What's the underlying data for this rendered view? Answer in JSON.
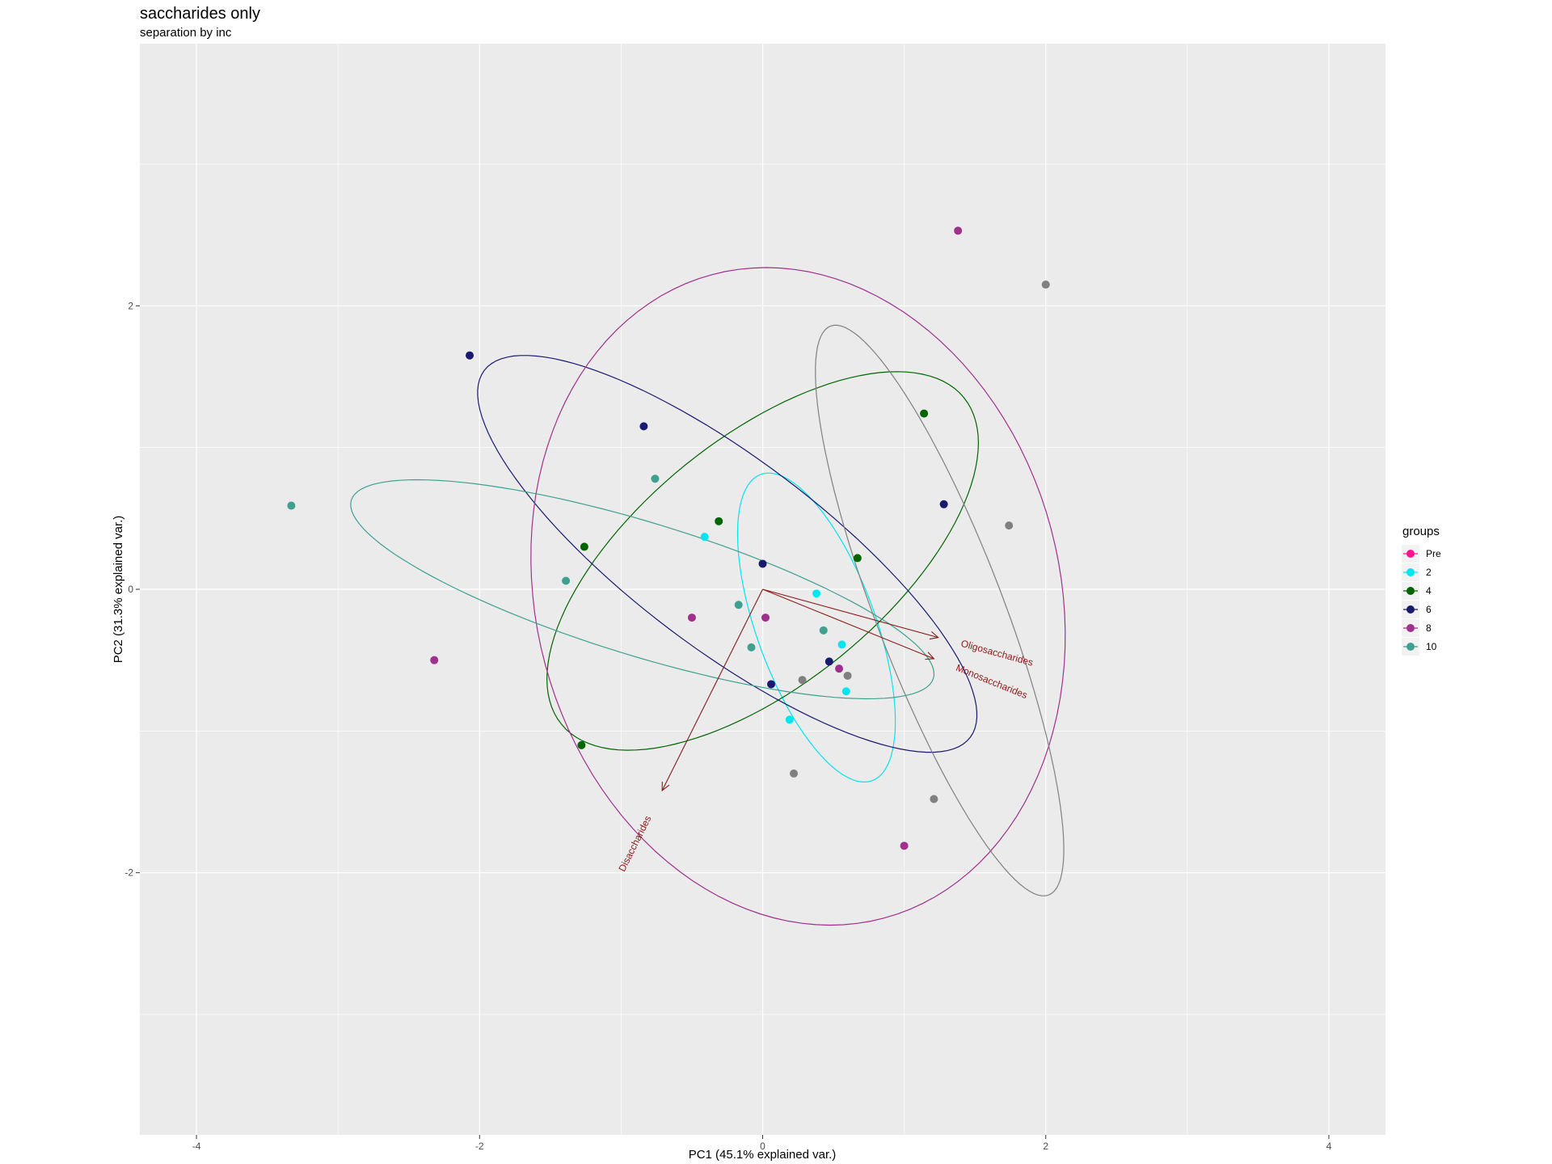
{
  "chart_data": {
    "type": "scatter",
    "title": "saccharides only",
    "subtitle": "separation by inc",
    "xlabel": "PC1 (45.1% explained var.)",
    "ylabel": "PC2 (31.3% explained var.)",
    "xlim": [
      -4.4,
      4.4
    ],
    "ylim": [
      -3.85,
      3.85
    ],
    "xticks": [
      -4,
      -2,
      0,
      2,
      4
    ],
    "yticks": [
      -2,
      0,
      2
    ],
    "grid": true,
    "legend": {
      "title": "groups",
      "position": "right"
    },
    "series": [
      {
        "name": "Pre",
        "color": "#ff1493",
        "points": []
      },
      {
        "name": "2",
        "color": "#00e5ee",
        "points": [
          [
            -0.41,
            0.37
          ],
          [
            0.38,
            -0.03
          ],
          [
            0.56,
            -0.39
          ],
          [
            0.59,
            -0.72
          ],
          [
            0.19,
            -0.92
          ]
        ]
      },
      {
        "name": "4",
        "color": "#006400",
        "points": [
          [
            -1.26,
            0.3
          ],
          [
            -0.31,
            0.48
          ],
          [
            0.67,
            0.22
          ],
          [
            1.14,
            1.24
          ],
          [
            -1.28,
            -1.1
          ]
        ]
      },
      {
        "name": "6",
        "color": "#191970",
        "points": [
          [
            -2.07,
            1.65
          ],
          [
            -0.84,
            1.15
          ],
          [
            0.0,
            0.18
          ],
          [
            1.28,
            0.6
          ],
          [
            0.47,
            -0.51
          ],
          [
            0.06,
            -0.67
          ]
        ]
      },
      {
        "name": "8",
        "color": "#a0308c",
        "points": [
          [
            1.38,
            2.53
          ],
          [
            -0.5,
            -0.2
          ],
          [
            0.02,
            -0.2
          ],
          [
            0.54,
            -0.56
          ],
          [
            -2.32,
            -0.5
          ],
          [
            1.0,
            -1.81
          ]
        ]
      },
      {
        "name": "10",
        "color": "#3fa090",
        "points": [
          [
            -3.33,
            0.59
          ],
          [
            -0.76,
            0.78
          ],
          [
            -1.39,
            0.06
          ],
          [
            -0.17,
            -0.11
          ],
          [
            0.43,
            -0.29
          ],
          [
            -0.08,
            -0.41
          ]
        ]
      },
      {
        "name": "",
        "color": "#808080",
        "points": [
          [
            2.0,
            2.15
          ],
          [
            1.74,
            0.45
          ],
          [
            0.28,
            -0.64
          ],
          [
            0.6,
            -0.61
          ],
          [
            0.22,
            -1.3
          ],
          [
            1.21,
            -1.48
          ]
        ]
      }
    ],
    "ellipses": [
      {
        "group": "2",
        "color": "#00e5ee",
        "cx": 0.38,
        "cy": -0.27,
        "rx": 1.15,
        "ry": 0.42,
        "angle_deg": -70
      },
      {
        "group": "4",
        "color": "#006400",
        "cx": 0.0,
        "cy": 0.2,
        "rx": 1.83,
        "ry": 0.87,
        "angle_deg": 39
      },
      {
        "group": "6",
        "color": "#191970",
        "cx": -0.25,
        "cy": 0.25,
        "rx": 2.15,
        "ry": 0.67,
        "angle_deg": -37
      },
      {
        "group": "8",
        "color": "#a0308c",
        "cx": 0.25,
        "cy": -0.05,
        "rx": 2.35,
        "ry": 1.85,
        "angle_deg": -75
      },
      {
        "group": "10",
        "color": "#3fa090",
        "cx": -0.85,
        "cy": 0.0,
        "rx": 2.15,
        "ry": 0.47,
        "angle_deg": -17
      },
      {
        "group": "",
        "color": "#808080",
        "cx": 1.25,
        "cy": -0.15,
        "rx": 2.15,
        "ry": 0.45,
        "angle_deg": -69
      }
    ],
    "loadings": {
      "color": "#8b1a1a",
      "arrows": [
        {
          "name": "Oligosaccharides",
          "x": 1.24,
          "y": -0.34
        },
        {
          "name": "Monosaccharides",
          "x": 1.21,
          "y": -0.49
        },
        {
          "name": "Disaccharides",
          "x": -0.71,
          "y": -1.42
        }
      ]
    }
  }
}
